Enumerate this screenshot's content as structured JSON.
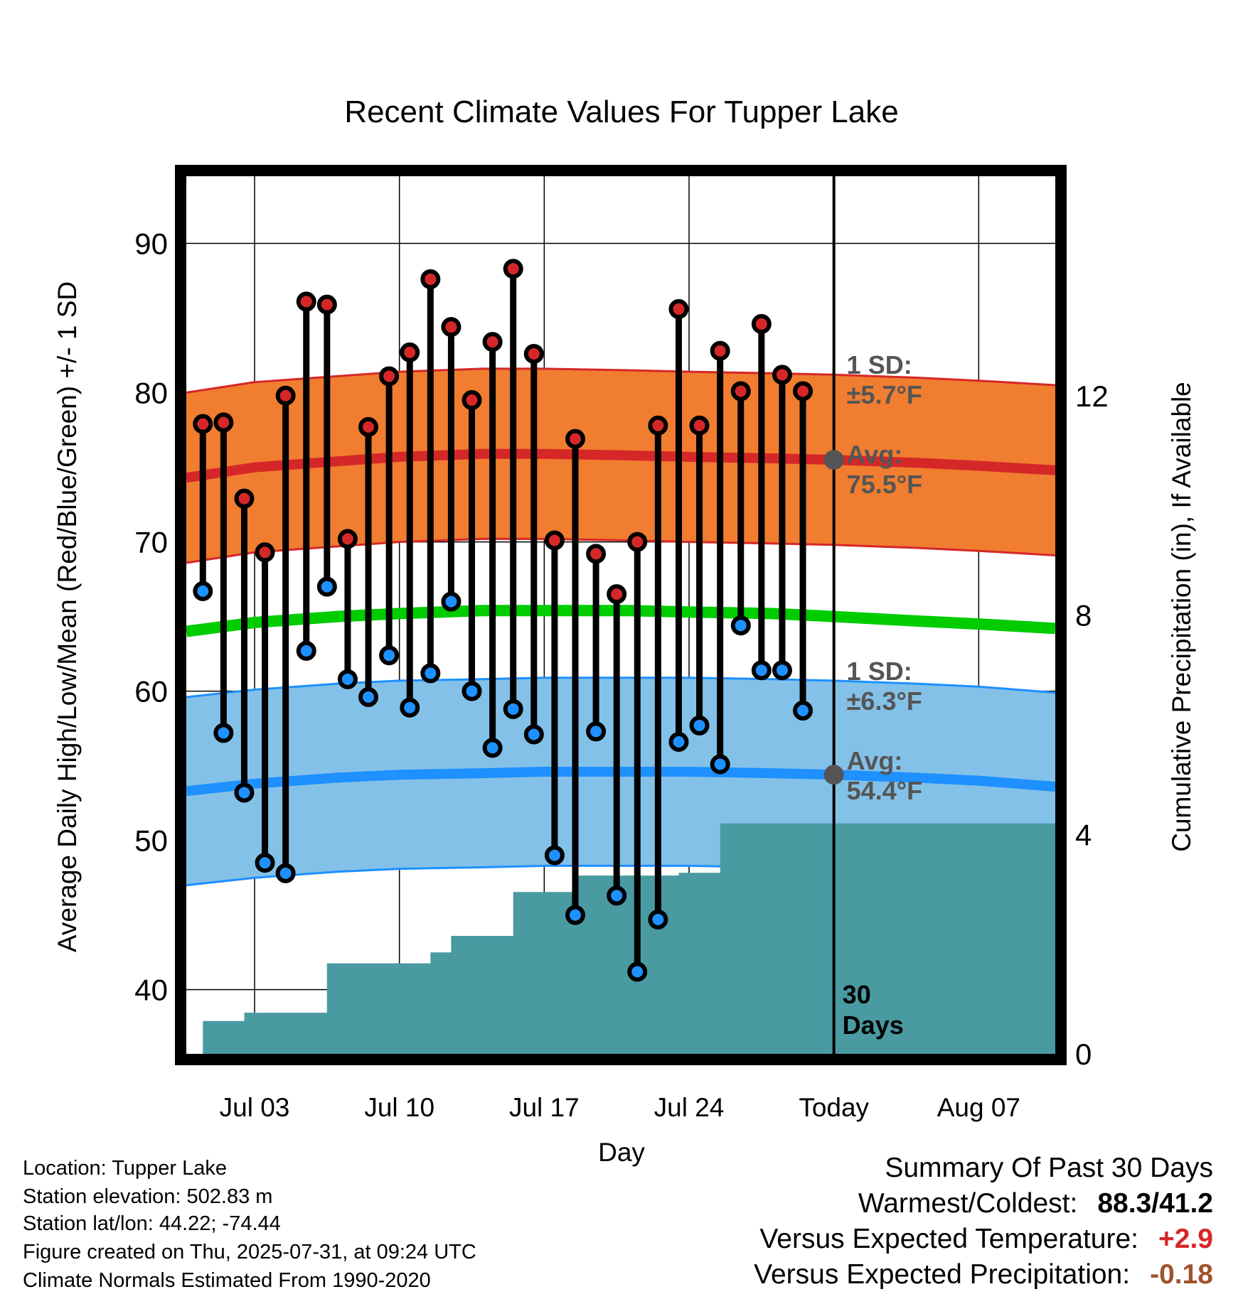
{
  "chart_data": {
    "type": "line",
    "title": "Recent Climate Values For Tupper Lake",
    "xlabel": "Day",
    "ylabel": "Average Daily High/Low/Mean (Red/Blue/Green) +/- 1 SD",
    "ylabel_right": "Cumulative Precipitation (in), If Available",
    "x_tick_labels": [
      "Jul 03",
      "Jul 10",
      "Jul 17",
      "Jul 24",
      "Today",
      "Aug 07"
    ],
    "x_tick_days": [
      3,
      10,
      17,
      24,
      31,
      38
    ],
    "xlim": [
      -0.3,
      41.7
    ],
    "ylim": [
      35.7,
      94.5
    ],
    "y_ticks": [
      40,
      50,
      60,
      70,
      80,
      90
    ],
    "y2lim": [
      0,
      16
    ],
    "y2_ticks": [
      0,
      4,
      8,
      12
    ],
    "grid": true,
    "days": [
      0.5,
      1.5,
      2.5,
      3.5,
      4.5,
      5.5,
      6.5,
      7.5,
      8.5,
      9.5,
      10.5,
      11.5,
      12.5,
      13.5,
      14.5,
      15.5,
      16.5,
      17.5,
      18.5,
      19.5,
      20.5,
      21.5,
      22.5,
      23.5,
      24.5,
      25.5,
      26.5,
      27.5,
      28.5,
      29.5
    ],
    "daily_high": [
      77.9,
      78.0,
      72.9,
      69.3,
      79.8,
      86.1,
      85.9,
      70.2,
      77.7,
      81.1,
      82.7,
      87.6,
      84.4,
      79.5,
      83.4,
      88.3,
      82.6,
      70.1,
      76.9,
      69.2,
      66.5,
      70.0,
      77.8,
      85.6,
      77.8,
      82.8,
      80.1,
      84.6,
      81.2,
      80.1
    ],
    "daily_low": [
      66.7,
      57.2,
      53.2,
      48.5,
      47.8,
      62.7,
      67.0,
      60.8,
      59.6,
      62.4,
      58.9,
      61.2,
      66.0,
      60.0,
      56.2,
      58.8,
      57.1,
      49.0,
      45.0,
      57.3,
      46.3,
      41.2,
      44.7,
      56.6,
      57.7,
      55.1,
      64.4,
      61.4,
      61.4,
      58.7
    ],
    "normal_x": [
      -0.3,
      3,
      7,
      10,
      14,
      17,
      21,
      24,
      28,
      31,
      35,
      38,
      41.7
    ],
    "normal_high": [
      74.3,
      75.0,
      75.4,
      75.7,
      75.9,
      75.9,
      75.8,
      75.7,
      75.6,
      75.5,
      75.3,
      75.1,
      74.8
    ],
    "normal_high_sd": 5.7,
    "normal_low": [
      53.3,
      53.8,
      54.2,
      54.4,
      54.5,
      54.6,
      54.6,
      54.6,
      54.5,
      54.4,
      54.2,
      54.0,
      53.6
    ],
    "normal_low_sd": 6.3,
    "normal_mean": [
      64.0,
      64.6,
      65.0,
      65.2,
      65.4,
      65.4,
      65.4,
      65.3,
      65.2,
      65.0,
      64.7,
      64.5,
      64.2
    ],
    "precip_x": [
      -0.3,
      0.5,
      1.5,
      2.5,
      3.5,
      4.5,
      5.5,
      6.5,
      7.5,
      8.5,
      9.5,
      10.5,
      11.5,
      12.5,
      13.5,
      14.5,
      15.5,
      16.5,
      17.5,
      18.5,
      19.5,
      20.5,
      21.5,
      22.5,
      23.5,
      24.5,
      25.5,
      26.5,
      27.5,
      28.5,
      29.5,
      31,
      41.7
    ],
    "cumulative_precip": [
      0,
      0.6,
      0.6,
      0.75,
      0.75,
      0.75,
      0.75,
      1.65,
      1.65,
      1.65,
      1.65,
      1.65,
      1.85,
      2.15,
      2.15,
      2.15,
      2.95,
      2.95,
      2.95,
      3.25,
      3.25,
      3.25,
      3.25,
      3.25,
      3.3,
      3.3,
      4.2,
      4.2,
      4.2,
      4.2,
      4.2,
      4.2,
      4.2
    ],
    "annotations": {
      "high_sd_line1": "1 SD:",
      "high_sd_line2": "±5.7°F",
      "high_avg_line1": "Avg:",
      "high_avg_line2": "75.5°F",
      "low_sd_line1": "1 SD:",
      "low_sd_line2": "±6.3°F",
      "low_avg_line1": "Avg:",
      "low_avg_line2": "54.4°F",
      "window_line1": "30",
      "window_line2": "Days"
    },
    "colors": {
      "high_band": "#f07d30",
      "high_line": "#d62728",
      "low_band": "#84c1e8",
      "low_line": "#1e90ff",
      "mean_line": "#00cc00",
      "precip": "#4a9aa2",
      "high_marker": "#d62728",
      "low_marker": "#1e90ff",
      "annotation": "#555555"
    }
  },
  "info": {
    "location": "Location: Tupper Lake",
    "elevation": "Station elevation: 502.83 m",
    "latlon": "Station lat/lon: 44.22; -74.44",
    "created": "Figure created on Thu, 2025-07-31, at 09:24 UTC",
    "normals": "Climate Normals Estimated From 1990-2020"
  },
  "summary": {
    "title": "Summary Of Past 30 Days",
    "warm_cold_label": "Warmest/Coldest:",
    "warm_cold_value": "88.3/41.2",
    "temp_label": "Versus Expected Temperature:",
    "temp_value": "+2.9",
    "temp_color": "#d62728",
    "precip_label": "Versus Expected Precipitation:",
    "precip_value": "-0.18",
    "precip_color": "#a0522d"
  }
}
